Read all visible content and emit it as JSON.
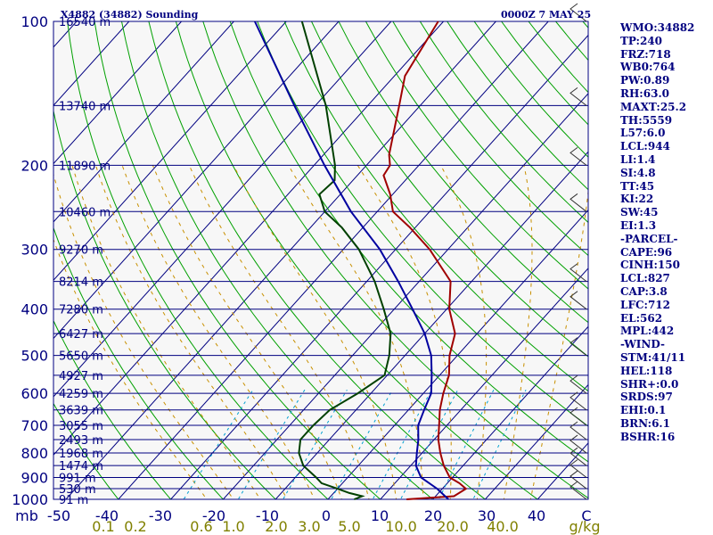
{
  "header": {
    "left": "X4882 (34882) Sounding",
    "right": "0000Z  7 MAY 25"
  },
  "colors": {
    "background": "#f7f7f7",
    "isobar": "#000080",
    "isotherm": "#000080",
    "dry_adiabat": "#00a000",
    "moist_adiabat": "#c89000",
    "mixing_ratio": "#00a0d0",
    "temperature": "#a00000",
    "dewpoint": "#004000",
    "parcel": "#0000a0",
    "text": "#000080",
    "axis_text": "#808000"
  },
  "chart_data": {
    "type": "line",
    "title": "",
    "xlabel": "",
    "ylabel": "mb",
    "pressure_levels": [
      100,
      200,
      300,
      400,
      500,
      600,
      700,
      800,
      900,
      1000
    ],
    "pressure_tick_labels": [
      "100",
      "200",
      "300",
      "400",
      "500",
      "600",
      "700",
      "800",
      "900",
      "1000"
    ],
    "temperature_ticks": [
      -50,
      -40,
      -30,
      -20,
      -10,
      0,
      10,
      20,
      30,
      40
    ],
    "temperature_tick_labels": [
      "-50",
      "-40",
      "-30",
      "-20",
      "-10",
      "0",
      "10",
      "20",
      "30",
      "40",
      "C"
    ],
    "mixing_ratio_labels": [
      "0.1",
      "0.2",
      "0.6",
      "1.0",
      "2.0",
      "3.0",
      "5.0",
      "10.0",
      "20.0",
      "40.0",
      "g/kg"
    ],
    "height_levels": [
      {
        "label": "16540 m",
        "p": 100
      },
      {
        "label": "13740 m",
        "p": 150
      },
      {
        "label": "11890 m",
        "p": 200
      },
      {
        "label": "10460 m",
        "p": 250
      },
      {
        "label": "9270 m",
        "p": 300
      },
      {
        "label": "8214 m",
        "p": 350
      },
      {
        "label": "7280 m",
        "p": 400
      },
      {
        "label": "6427 m",
        "p": 450
      },
      {
        "label": "5650 m",
        "p": 500
      },
      {
        "label": "4927 m",
        "p": 550
      },
      {
        "label": "4259 m",
        "p": 600
      },
      {
        "label": "3639 m",
        "p": 650
      },
      {
        "label": "3055 m",
        "p": 700
      },
      {
        "label": "2493 m",
        "p": 750
      },
      {
        "label": "1968 m",
        "p": 800
      },
      {
        "label": "1474 m",
        "p": 850
      },
      {
        "label": "991 m",
        "p": 900
      },
      {
        "label": "530 m",
        "p": 950
      },
      {
        "label": "91 m",
        "p": 1000
      }
    ],
    "series": [
      {
        "key": "temperature",
        "points": [
          [
            1000,
            15.0
          ],
          [
            985,
            23.5
          ],
          [
            950,
            24.5
          ],
          [
            925,
            22.3
          ],
          [
            900,
            19.5
          ],
          [
            850,
            16.3
          ],
          [
            800,
            13.5
          ],
          [
            750,
            10.8
          ],
          [
            700,
            8.5
          ],
          [
            650,
            6.0
          ],
          [
            600,
            3.8
          ],
          [
            550,
            1.8
          ],
          [
            500,
            -1.5
          ],
          [
            450,
            -4.2
          ],
          [
            400,
            -9.5
          ],
          [
            350,
            -14.0
          ],
          [
            300,
            -23.5
          ],
          [
            270,
            -31.0
          ],
          [
            250,
            -37.0
          ],
          [
            230,
            -40.5
          ],
          [
            210,
            -45.0
          ],
          [
            200,
            -45.5
          ],
          [
            190,
            -47.5
          ],
          [
            150,
            -54.0
          ],
          [
            130,
            -58.0
          ],
          [
            100,
            -61.0
          ]
        ]
      },
      {
        "key": "dewpoint",
        "points": [
          [
            1000,
            5.0
          ],
          [
            985,
            6.0
          ],
          [
            970,
            3.0
          ],
          [
            950,
            0.0
          ],
          [
            925,
            -4.0
          ],
          [
            900,
            -6.0
          ],
          [
            850,
            -10.5
          ],
          [
            800,
            -13.5
          ],
          [
            750,
            -15.5
          ],
          [
            700,
            -15.5
          ],
          [
            650,
            -15.0
          ],
          [
            600,
            -12.5
          ],
          [
            550,
            -10.5
          ],
          [
            500,
            -13.0
          ],
          [
            450,
            -16.5
          ],
          [
            400,
            -22.0
          ],
          [
            350,
            -28.5
          ],
          [
            300,
            -37.0
          ],
          [
            270,
            -44.0
          ],
          [
            250,
            -50.0
          ],
          [
            230,
            -54.0
          ],
          [
            215,
            -53.5
          ],
          [
            200,
            -56.0
          ],
          [
            150,
            -68.0
          ],
          [
            100,
            -87.0
          ]
        ]
      },
      {
        "key": "parcel",
        "points": [
          [
            1000,
            23.0
          ],
          [
            950,
            19.0
          ],
          [
            900,
            14.0
          ],
          [
            850,
            11.0
          ],
          [
            800,
            9.0
          ],
          [
            750,
            7.0
          ],
          [
            700,
            4.5
          ],
          [
            650,
            3.0
          ],
          [
            600,
            1.5
          ],
          [
            550,
            -1.5
          ],
          [
            500,
            -5.0
          ],
          [
            450,
            -10.0
          ],
          [
            400,
            -16.5
          ],
          [
            350,
            -24.0
          ],
          [
            300,
            -33.0
          ],
          [
            250,
            -45.0
          ],
          [
            200,
            -58.0
          ],
          [
            150,
            -74.0
          ],
          [
            100,
            -96.0
          ]
        ]
      }
    ],
    "wind_barbs": [
      {
        "p": 1000
      },
      {
        "p": 950
      },
      {
        "p": 900
      },
      {
        "p": 850
      },
      {
        "p": 800
      },
      {
        "p": 750
      },
      {
        "p": 700
      },
      {
        "p": 650
      },
      {
        "p": 600
      },
      {
        "p": 500
      },
      {
        "p": 400
      },
      {
        "p": 350
      },
      {
        "p": 250
      },
      {
        "p": 200
      },
      {
        "p": 150
      },
      {
        "p": 100
      }
    ],
    "grid": true
  },
  "indices": [
    "WMO:34882",
    "TP:240",
    "FRZ:718",
    "WB0:764",
    "PW:0.89",
    "RH:63.0",
    "MAXT:25.2",
    "TH:5559",
    "L57:6.0",
    "LCL:944",
    "LI:1.4",
    "SI:4.8",
    "TT:45",
    "KI:22",
    "SW:45",
    "EI:1.3",
    "-PARCEL-",
    "CAPE:96",
    "CINH:150",
    "LCL:827",
    "CAP:3.8",
    "LFC:712",
    "EL:562",
    "MPL:442",
    "-WIND-",
    "STM:41/11",
    "HEL:118",
    "SHR+:0.0",
    "SRDS:97",
    "EHI:0.1",
    "BRN:6.1",
    "BSHR:16"
  ]
}
